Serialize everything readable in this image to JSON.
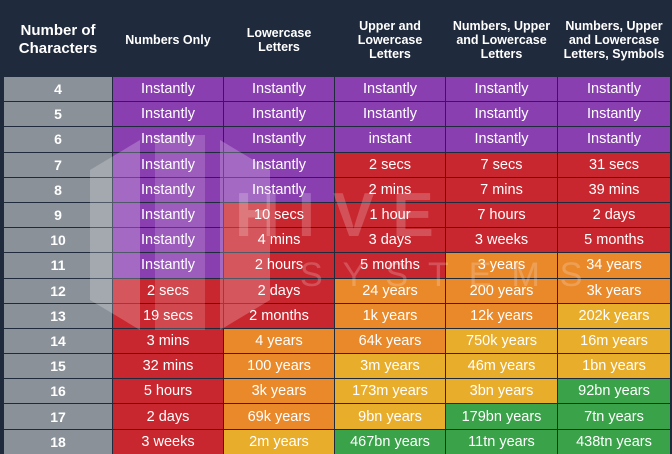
{
  "headers": [
    "Number of\nCharacters",
    "Numbers Only",
    "Lowercase\nLetters",
    "Upper and\nLowercase\nLetters",
    "Numbers, Upper\nand Lowercase\nLetters",
    "Numbers, Upper\nand Lowercase\nLetters, Symbols"
  ],
  "watermark": {
    "title": "HIVE",
    "subtitle": "SYSTEMS"
  },
  "colors": {
    "purple": "#8a3fb1",
    "red": "#c9272f",
    "orange": "#e9892a",
    "yellow": "#e9ad2c",
    "green": "#3aa34a",
    "label": "#8a9199",
    "background": "#1f2a3c"
  },
  "rows": [
    {
      "n": "4",
      "cells": [
        [
          "Instantly",
          "purple"
        ],
        [
          "Instantly",
          "purple"
        ],
        [
          "Instantly",
          "purple"
        ],
        [
          "Instantly",
          "purple"
        ],
        [
          "Instantly",
          "purple"
        ]
      ]
    },
    {
      "n": "5",
      "cells": [
        [
          "Instantly",
          "purple"
        ],
        [
          "Instantly",
          "purple"
        ],
        [
          "Instantly",
          "purple"
        ],
        [
          "Instantly",
          "purple"
        ],
        [
          "Instantly",
          "purple"
        ]
      ]
    },
    {
      "n": "6",
      "cells": [
        [
          "Instantly",
          "purple"
        ],
        [
          "Instantly",
          "purple"
        ],
        [
          "instant",
          "purple"
        ],
        [
          "Instantly",
          "purple"
        ],
        [
          "Instantly",
          "purple"
        ]
      ]
    },
    {
      "n": "7",
      "cells": [
        [
          "Instantly",
          "purple"
        ],
        [
          "Instantly",
          "purple"
        ],
        [
          "2 secs",
          "red"
        ],
        [
          "7 secs",
          "red"
        ],
        [
          "31 secs",
          "red"
        ]
      ]
    },
    {
      "n": "8",
      "cells": [
        [
          "Instantly",
          "purple"
        ],
        [
          "Instantly",
          "purple"
        ],
        [
          "2 mins",
          "red"
        ],
        [
          "7 mins",
          "red"
        ],
        [
          "39 mins",
          "red"
        ]
      ]
    },
    {
      "n": "9",
      "cells": [
        [
          "Instantly",
          "purple"
        ],
        [
          "10 secs",
          "red"
        ],
        [
          "1 hour",
          "red"
        ],
        [
          "7 hours",
          "red"
        ],
        [
          "2 days",
          "red"
        ]
      ]
    },
    {
      "n": "10",
      "cells": [
        [
          "Instantly",
          "purple"
        ],
        [
          "4 mins",
          "red"
        ],
        [
          "3 days",
          "red"
        ],
        [
          "3 weeks",
          "red"
        ],
        [
          "5 months",
          "red"
        ]
      ]
    },
    {
      "n": "11",
      "cells": [
        [
          "Instantly",
          "purple"
        ],
        [
          "2 hours",
          "red"
        ],
        [
          "5 months",
          "red"
        ],
        [
          "3 years",
          "orange"
        ],
        [
          "34 years",
          "orange"
        ]
      ]
    },
    {
      "n": "12",
      "cells": [
        [
          "2 secs",
          "red"
        ],
        [
          "2 days",
          "red"
        ],
        [
          "24 years",
          "orange"
        ],
        [
          "200 years",
          "orange"
        ],
        [
          "3k years",
          "orange"
        ]
      ]
    },
    {
      "n": "13",
      "cells": [
        [
          "19 secs",
          "red"
        ],
        [
          "2 months",
          "red"
        ],
        [
          "1k years",
          "orange"
        ],
        [
          "12k years",
          "orange"
        ],
        [
          "202k years",
          "yellow"
        ]
      ]
    },
    {
      "n": "14",
      "cells": [
        [
          "3 mins",
          "red"
        ],
        [
          "4 years",
          "orange"
        ],
        [
          "64k years",
          "orange"
        ],
        [
          "750k years",
          "yellow"
        ],
        [
          "16m years",
          "yellow"
        ]
      ]
    },
    {
      "n": "15",
      "cells": [
        [
          "32 mins",
          "red"
        ],
        [
          "100 years",
          "orange"
        ],
        [
          "3m years",
          "yellow"
        ],
        [
          "46m years",
          "yellow"
        ],
        [
          "1bn years",
          "yellow"
        ]
      ]
    },
    {
      "n": "16",
      "cells": [
        [
          "5 hours",
          "red"
        ],
        [
          "3k years",
          "orange"
        ],
        [
          "173m years",
          "yellow"
        ],
        [
          "3bn years",
          "yellow"
        ],
        [
          "92bn years",
          "green"
        ]
      ]
    },
    {
      "n": "17",
      "cells": [
        [
          "2 days",
          "red"
        ],
        [
          "69k years",
          "orange"
        ],
        [
          "9bn years",
          "yellow"
        ],
        [
          "179bn years",
          "green"
        ],
        [
          "7tn years",
          "green"
        ]
      ]
    },
    {
      "n": "18",
      "cells": [
        [
          "3 weeks",
          "red"
        ],
        [
          "2m years",
          "yellow"
        ],
        [
          "467bn years",
          "green"
        ],
        [
          "11tn years",
          "green"
        ],
        [
          "438tn years",
          "green"
        ]
      ]
    }
  ]
}
